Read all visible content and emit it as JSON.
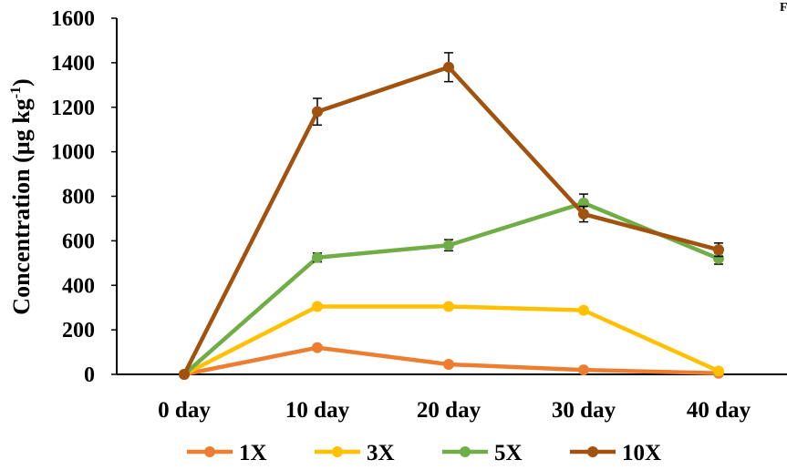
{
  "chart_data": {
    "type": "line",
    "title": "",
    "xlabel": "",
    "ylabel": "Concentration (µg kg",
    "ylabel_sup": "-1",
    "ylabel_close": ")",
    "categories": [
      "0 day",
      "10 day",
      "20 day",
      "30 day",
      "40 day"
    ],
    "ylim": [
      0,
      1600
    ],
    "yticks": [
      "0",
      "200",
      "400",
      "600",
      "800",
      "1000",
      "1200",
      "1400",
      "1600"
    ],
    "grid": false,
    "legend_position": "bottom",
    "series": [
      {
        "name": "1X",
        "color": "#ED7D31",
        "values": [
          0,
          120,
          45,
          20,
          5
        ],
        "errors": [
          0,
          0,
          0,
          0,
          0
        ]
      },
      {
        "name": "3X",
        "color": "#FFC000",
        "values": [
          0,
          305,
          305,
          288,
          15
        ],
        "errors": [
          0,
          0,
          0,
          0,
          0
        ]
      },
      {
        "name": "5X",
        "color": "#70AD47",
        "values": [
          0,
          525,
          580,
          770,
          520
        ],
        "errors": [
          0,
          20,
          25,
          40,
          25
        ]
      },
      {
        "name": "10X",
        "color": "#A0520E",
        "values": [
          0,
          1180,
          1380,
          720,
          560
        ],
        "errors": [
          0,
          60,
          65,
          35,
          30
        ]
      }
    ],
    "corner_text": "F"
  }
}
